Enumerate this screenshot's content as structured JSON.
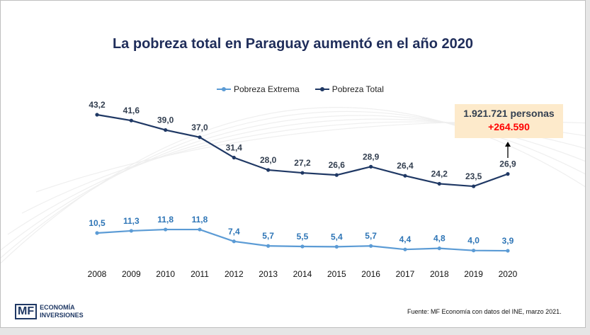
{
  "chart_data": {
    "type": "line",
    "title": "La pobreza total en Paraguay aumentó en el año 2020",
    "categories": [
      "2008",
      "2009",
      "2010",
      "2011",
      "2012",
      "2013",
      "2014",
      "2015",
      "2016",
      "2017",
      "2018",
      "2019",
      "2020"
    ],
    "series": [
      {
        "name": "Pobreza Extrema",
        "color": "#5b9bd5",
        "values": [
          10.5,
          11.3,
          11.8,
          11.8,
          7.4,
          5.7,
          5.5,
          5.4,
          5.7,
          4.4,
          4.8,
          4.0,
          3.9
        ],
        "labels": [
          "10,5",
          "11,3",
          "11,8",
          "11,8",
          "7,4",
          "5,7",
          "5,5",
          "5,4",
          "5,7",
          "4,4",
          "4,8",
          "4,0",
          "3,9"
        ]
      },
      {
        "name": "Pobreza Total",
        "color": "#1f3864",
        "values": [
          43.2,
          41.6,
          39.0,
          37.0,
          31.4,
          28.0,
          27.2,
          26.6,
          28.9,
          26.4,
          24.2,
          23.5,
          26.9
        ],
        "labels": [
          "43,2",
          "41,6",
          "39,0",
          "37,0",
          "31,4",
          "28,0",
          "27,2",
          "26,6",
          "28,9",
          "26,4",
          "24,2",
          "23,5",
          "26,9"
        ]
      }
    ],
    "legend": "top-center",
    "annotation": {
      "line1": "1.921.721 personas",
      "line2": "+264.590"
    }
  },
  "source": "Fuente: MF Economía con datos del INE, marzo 2021.",
  "logo": {
    "mark": "MF",
    "line1": "ECONOMÍA",
    "line2": "INVERSIONES"
  }
}
